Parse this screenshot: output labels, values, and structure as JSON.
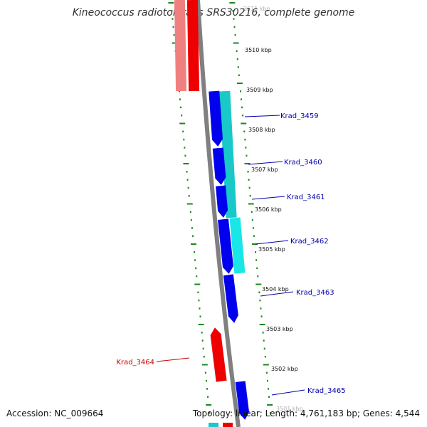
{
  "title": "Kineococcus radiotolerans SRS30216, complete genome",
  "accession_text": "Accession: NC_009664",
  "summary_text": "Topology: linear; Length: 4,761,183 bp; Genes: 4,544",
  "colors": {
    "backbone": "#808080",
    "tick": "#1a8a1a",
    "forward_cds": "#0000ee",
    "forward_rna": "#19c8c8",
    "reverse_cds": "#ee0000",
    "reverse_faded": "#f08080",
    "label_forward": "#0000aa",
    "label_reverse": "#cc0000"
  },
  "kbp_ticks": [
    {
      "kbp": 3511,
      "label": "3511 kbp"
    },
    {
      "kbp": 3510,
      "label": "3510 kbp"
    },
    {
      "kbp": 3509,
      "label": "3509 kbp"
    },
    {
      "kbp": 3508,
      "label": "3508 kbp"
    },
    {
      "kbp": 3507,
      "label": "3507 kbp"
    },
    {
      "kbp": 3506,
      "label": "3506 kbp"
    },
    {
      "kbp": 3505,
      "label": "3505 kbp"
    },
    {
      "kbp": 3504,
      "label": "3504 kbp"
    },
    {
      "kbp": 3503,
      "label": "3503 kbp"
    },
    {
      "kbp": 3502,
      "label": "3502 kbp"
    },
    {
      "kbp": 3501,
      "label": "3501 kbp"
    }
  ],
  "gene_labels": [
    {
      "name": "Krad_3459",
      "strand": "+"
    },
    {
      "name": "Krad_3460",
      "strand": "+"
    },
    {
      "name": "Krad_3461",
      "strand": "+"
    },
    {
      "name": "Krad_3462",
      "strand": "+"
    },
    {
      "name": "Krad_3463",
      "strand": "+"
    },
    {
      "name": "Krad_3464",
      "strand": "-"
    },
    {
      "name": "Krad_3465",
      "strand": "+"
    }
  ]
}
